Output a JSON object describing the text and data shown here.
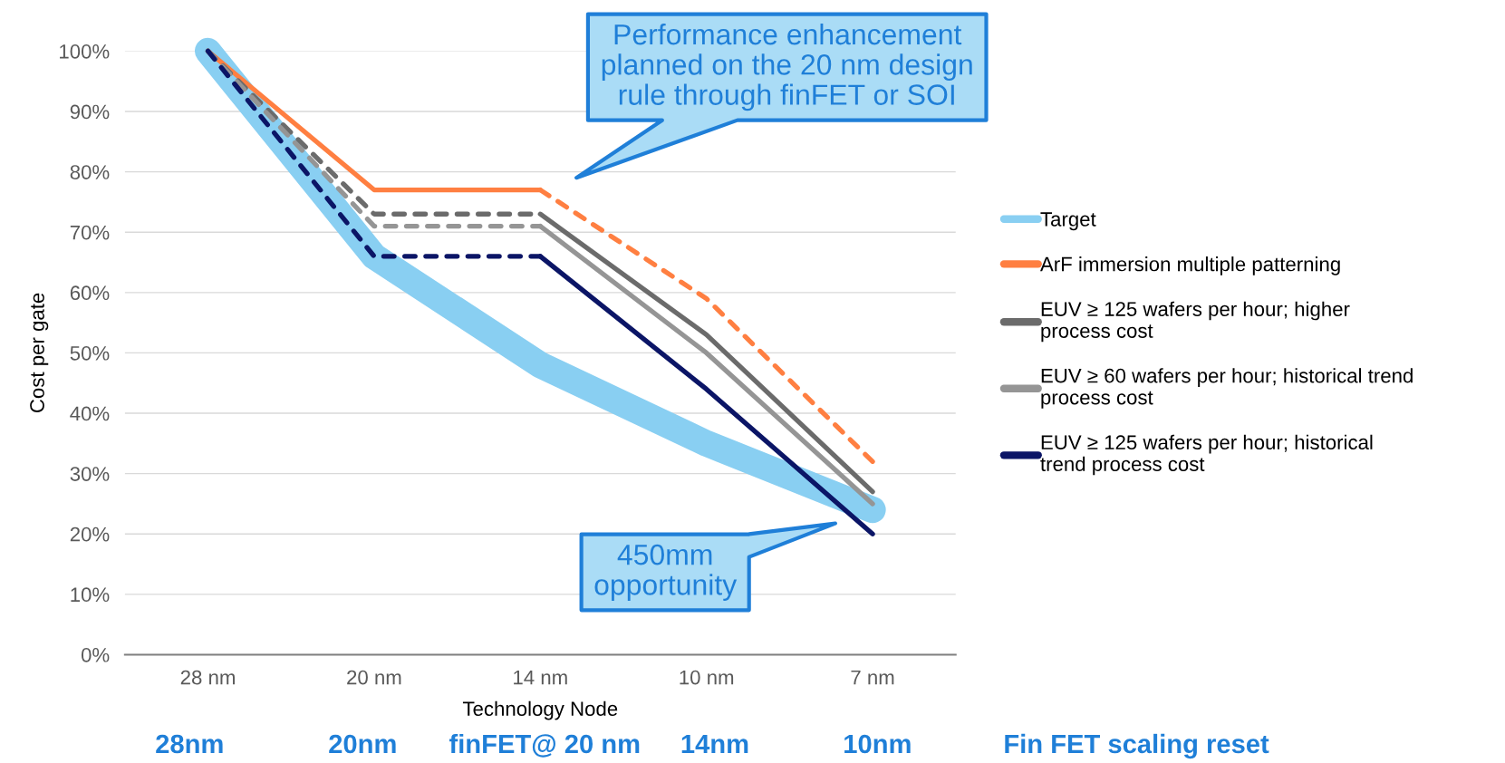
{
  "chart_data": {
    "type": "line",
    "xlabel": "Technology Node",
    "ylabel": "Cost per gate",
    "categories": [
      "28 nm",
      "20 nm",
      "14 nm",
      "10 nm",
      "7 nm"
    ],
    "ylim": [
      0,
      100
    ],
    "yticks": [
      {
        "value": 0,
        "label": "0%"
      },
      {
        "value": 10,
        "label": "10%"
      },
      {
        "value": 20,
        "label": "20%"
      },
      {
        "value": 30,
        "label": "30%"
      },
      {
        "value": 40,
        "label": "40%"
      },
      {
        "value": 50,
        "label": "50%"
      },
      {
        "value": 60,
        "label": "60%"
      },
      {
        "value": 70,
        "label": "70%"
      },
      {
        "value": 80,
        "label": "80%"
      },
      {
        "value": 90,
        "label": "90%"
      },
      {
        "value": 100,
        "label": "100%"
      }
    ],
    "grid": "y",
    "legend": "right",
    "series": [
      {
        "name": "Target",
        "color": "#89cff2",
        "values": [
          100,
          66,
          48,
          35,
          24
        ],
        "line_style": "solid"
      },
      {
        "name": "ArF immersion multiple patterning",
        "color": "#ff7f41",
        "values": [
          100,
          77,
          77,
          null,
          null
        ],
        "line_style": "solid"
      },
      {
        "color": "#ff7f41",
        "values": [
          null,
          null,
          77,
          59,
          32
        ],
        "line_style": "dashed"
      },
      {
        "name": "EUV ≥ 125 wafers per hour; higher\nprocess cost",
        "color": "#6b6b6b",
        "values": [
          null,
          null,
          73,
          53,
          27
        ],
        "line_style": "solid"
      },
      {
        "color": "#6b6b6b",
        "values": [
          100,
          73,
          73,
          null,
          null
        ],
        "line_style": "dashed"
      },
      {
        "name": "EUV ≥ 60 wafers per hour; historical trend\nprocess cost",
        "color": "#959595",
        "values": [
          null,
          null,
          71,
          50,
          25
        ],
        "line_style": "solid"
      },
      {
        "color": "#959595",
        "values": [
          100,
          71,
          71,
          null,
          null
        ],
        "line_style": "dashed"
      },
      {
        "name": "EUV ≥ 125 wafers per hour; historical\ntrend process cost",
        "color": "#0b1566",
        "values": [
          null,
          null,
          66,
          44,
          20
        ],
        "line_style": "solid"
      },
      {
        "color": "#0b1566",
        "values": [
          100,
          66,
          66,
          null,
          null
        ],
        "line_style": "dashed"
      }
    ],
    "annotations": [
      "Performance enhancement\nplanned on the 20 nm design\nrule through finFET or SOI",
      "450mm\nopportunity",
      "28nm",
      "20nm",
      "finFET@ 20 nm",
      "14nm",
      "10nm",
      "Fin FET scaling reset"
    ]
  }
}
